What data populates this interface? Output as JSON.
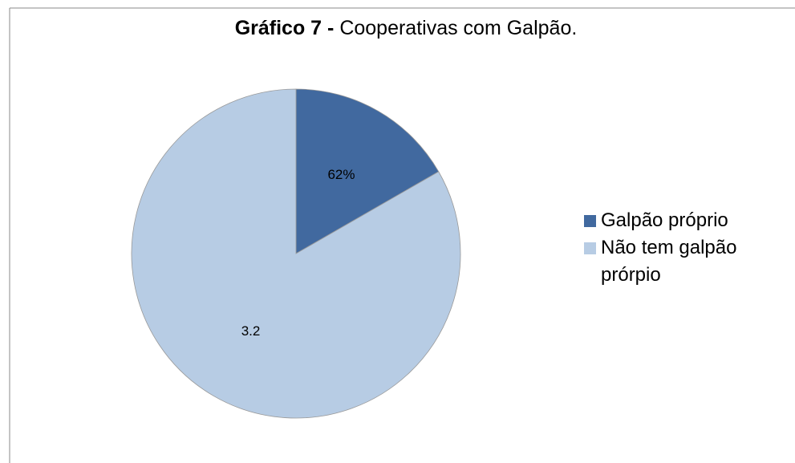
{
  "chart_data": {
    "type": "pie",
    "title_prefix": "Gráfico 7 -",
    "title": "Cooperativas com Galpão.",
    "categories": [
      "Galpão próprio",
      "Não tem galpão prórpio"
    ],
    "values": [
      16.7,
      83.3
    ],
    "colors": [
      "#41699f",
      "#b7cce4"
    ],
    "annotations": [
      "62%",
      "3.2"
    ],
    "legend": "right"
  }
}
